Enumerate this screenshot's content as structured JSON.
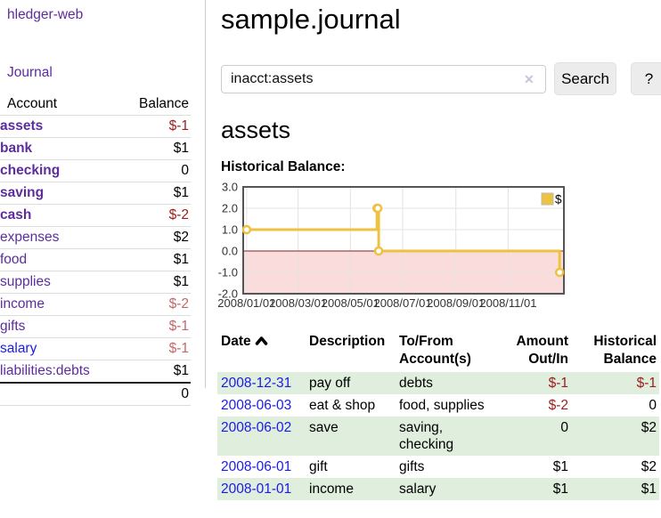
{
  "app": {
    "brand": "hledger-web",
    "nav_journal": "Journal"
  },
  "icons": {
    "clear_search": "✕",
    "sort": "chevron-up"
  },
  "sidebar": {
    "header": {
      "account": "Account",
      "balance": "Balance"
    },
    "rows": [
      {
        "account": "assets",
        "balance": "$-1"
      },
      {
        "account": "bank",
        "balance": "$1"
      },
      {
        "account": "checking",
        "balance": "0"
      },
      {
        "account": "saving",
        "balance": "$1"
      },
      {
        "account": "cash",
        "balance": "$-2"
      },
      {
        "account": "expenses",
        "balance": "$2"
      },
      {
        "account": "food",
        "balance": "$1"
      },
      {
        "account": "supplies",
        "balance": "$1"
      },
      {
        "account": "income",
        "balance": "$-2"
      },
      {
        "account": "gifts",
        "balance": "$-1"
      },
      {
        "account": "salary",
        "balance": "$-1"
      },
      {
        "account": "liabilities:debts",
        "balance": "$1"
      }
    ],
    "total": "0"
  },
  "header": {
    "title": "sample.journal"
  },
  "search": {
    "value": "inacct:assets",
    "button": "Search",
    "help": "?"
  },
  "section": {
    "heading": "assets",
    "chart_title": "Historical Balance:"
  },
  "chart_data": {
    "type": "line",
    "style": "steps",
    "title": "Historical Balance",
    "series": [
      {
        "name": "$",
        "points": [
          [
            "2008-01-01",
            1
          ],
          [
            "2008-06-01",
            2
          ],
          [
            "2008-06-02",
            2
          ],
          [
            "2008-06-03",
            0
          ],
          [
            "2008-12-31",
            -1
          ]
        ]
      }
    ],
    "x_range": [
      "2007-12-28",
      "2009-01-05"
    ],
    "ylim": [
      -2,
      3
    ],
    "x_ticks": [
      {
        "date": "2008-01-01",
        "label": "2008/01/01"
      },
      {
        "date": "2008-03-01",
        "label": "2008/03/01"
      },
      {
        "date": "2008-05-01",
        "label": "2008/05/01"
      },
      {
        "date": "2008-07-01",
        "label": "2008/07/01"
      },
      {
        "date": "2008-09-01",
        "label": "2008/09/01"
      },
      {
        "date": "2008-11-01",
        "label": "2008/11/01"
      }
    ],
    "y_ticks": [
      {
        "value": 3,
        "label": "3.0"
      },
      {
        "value": 2,
        "label": "2.0"
      },
      {
        "value": 1,
        "label": "1.0"
      },
      {
        "value": 0,
        "label": "0.0"
      },
      {
        "value": -1,
        "label": "-1.0"
      },
      {
        "value": -2,
        "label": "-2.0"
      }
    ],
    "grid": true,
    "legend_position": "top-right",
    "colors": {
      "series": "#edc240",
      "negative_fill": "#fbdcdc",
      "zero_line": "#8a1f1f",
      "grid": "#e3e3e3",
      "border": "#555"
    }
  },
  "register": {
    "headers": {
      "date": "Date",
      "description": "Description",
      "accounts": "To/From Account(s)",
      "amount": "Amount Out/In",
      "balance": "Historical Balance"
    },
    "rows": [
      {
        "date": "2008-12-31",
        "description": "pay off",
        "accounts": "debts",
        "amount": "$-1",
        "balance": "$-1"
      },
      {
        "date": "2008-06-03",
        "description": "eat & shop",
        "accounts": "food, supplies",
        "amount": "$-2",
        "balance": "0"
      },
      {
        "date": "2008-06-02",
        "description": "save",
        "accounts": "saving, checking",
        "amount": "0",
        "balance": "$2"
      },
      {
        "date": "2008-06-01",
        "description": "gift",
        "accounts": "gifts",
        "amount": "$1",
        "balance": "$2"
      },
      {
        "date": "2008-01-01",
        "description": "income",
        "accounts": "salary",
        "amount": "$1",
        "balance": "$1"
      }
    ]
  }
}
